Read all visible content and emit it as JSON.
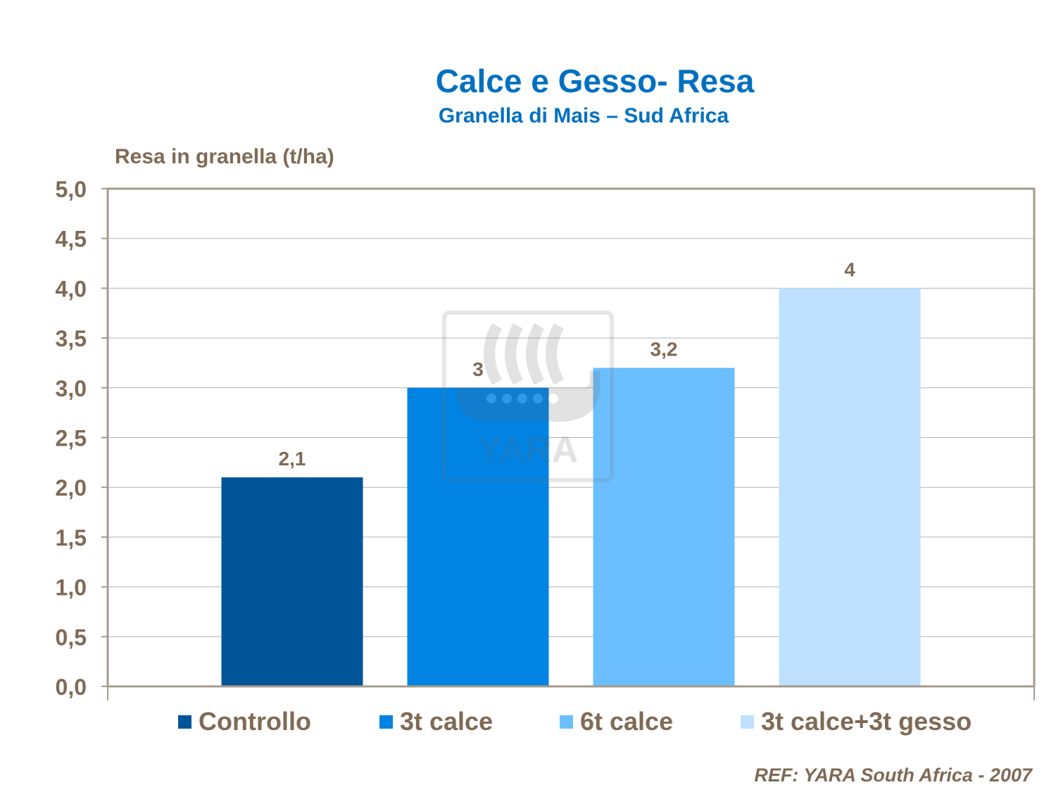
{
  "chart_data": {
    "type": "bar",
    "title": "Calce e Gesso- Resa",
    "subtitle": "Granella di Mais – Sud Africa",
    "ylabel": "Resa in granella (t/ha)",
    "ylim": [
      0,
      5
    ],
    "yticks": [
      "0,0",
      "0,5",
      "1,0",
      "1,5",
      "2,0",
      "2,5",
      "3,0",
      "3,5",
      "4,0",
      "4,5",
      "5,0"
    ],
    "grid": true,
    "legend_position": "bottom",
    "series": [
      {
        "name": "Controllo",
        "value": 2.1,
        "label": "2,1",
        "color": "#005597"
      },
      {
        "name": "3t calce",
        "value": 3.0,
        "label": "3",
        "color": "#0083e3"
      },
      {
        "name": "6t calce",
        "value": 3.2,
        "label": "3,2",
        "color": "#6bbfff"
      },
      {
        "name": "3t calce+3t gesso",
        "value": 4.0,
        "label": "4",
        "color": "#bde1ff"
      }
    ]
  },
  "footer": {
    "source": "REF: YARA South Africa - 2007"
  },
  "watermark": {
    "text": "YARA",
    "icon": "yara-viking-ship-logo"
  },
  "colors": {
    "title": "#0070c0",
    "text": "#7f6a55",
    "grid": "#b3b3b3",
    "frame": "#a59b8c"
  }
}
